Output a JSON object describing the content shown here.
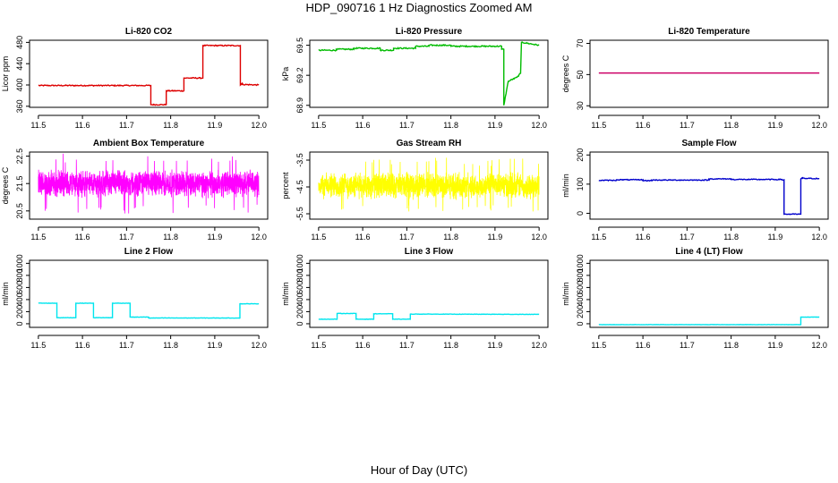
{
  "figure": {
    "title": "HDP_090716  1 Hz Diagnostics Zoomed AM",
    "xlabel": "Hour of Day (UTC)"
  },
  "chart_data": [
    {
      "type": "line",
      "title": "Li-820 CO2",
      "ylabel": "Licor ppm",
      "color": "#dd0000",
      "xlim": [
        11.48,
        12.02
      ],
      "ylim": [
        358,
        484
      ],
      "xticks": [
        11.5,
        11.6,
        11.7,
        11.8,
        11.9,
        12.0
      ],
      "xtick_labels": [
        "11.5",
        "11.6",
        "11.7",
        "11.8",
        "11.9",
        "12.0"
      ],
      "yticks": [
        360,
        400,
        440,
        480
      ],
      "ytick_labels": [
        "360",
        "400",
        "440",
        "480"
      ],
      "style": "step",
      "noise": 1.0,
      "x": [
        11.5,
        11.755,
        11.755,
        11.79,
        11.79,
        11.83,
        11.83,
        11.873,
        11.873,
        11.958,
        11.958,
        11.962,
        11.962,
        12.0
      ],
      "y": [
        399,
        399,
        363,
        363,
        389,
        389,
        413,
        413,
        474,
        474,
        400,
        403,
        401,
        400
      ]
    },
    {
      "type": "line",
      "title": "Li-820 Pressure",
      "ylabel": "kPa",
      "color": "#00bb00",
      "xlim": [
        11.48,
        12.02
      ],
      "ylim": [
        68.88,
        69.55
      ],
      "xticks": [
        11.5,
        11.6,
        11.7,
        11.8,
        11.9,
        12.0
      ],
      "xtick_labels": [
        "11.5",
        "11.6",
        "11.7",
        "11.8",
        "11.9",
        "12.0"
      ],
      "yticks": [
        68.9,
        69.2,
        69.5
      ],
      "ytick_labels": [
        "68.9",
        "69.2",
        "69.5"
      ],
      "style": "step",
      "noise": 0.006,
      "x": [
        11.5,
        11.54,
        11.54,
        11.58,
        11.58,
        11.64,
        11.64,
        11.67,
        11.67,
        11.72,
        11.72,
        11.75,
        11.75,
        11.8,
        11.8,
        11.915,
        11.915,
        11.92,
        11.92,
        11.93,
        11.95,
        11.95,
        11.958,
        11.958,
        11.96,
        12.0
      ],
      "y": [
        69.45,
        69.45,
        69.46,
        69.46,
        69.47,
        69.47,
        69.45,
        69.45,
        69.47,
        69.47,
        69.49,
        69.49,
        69.5,
        69.5,
        69.49,
        69.49,
        69.46,
        69.46,
        68.9,
        69.14,
        69.18,
        69.18,
        69.22,
        69.22,
        69.53,
        69.5
      ]
    },
    {
      "type": "line",
      "title": "Li-820 Temperature",
      "ylabel": "degrees C",
      "color": "#cc0066",
      "xlim": [
        11.48,
        12.02
      ],
      "ylim": [
        29,
        72
      ],
      "xticks": [
        11.5,
        11.6,
        11.7,
        11.8,
        11.9,
        12.0
      ],
      "xtick_labels": [
        "11.5",
        "11.6",
        "11.7",
        "11.8",
        "11.9",
        "12.0"
      ],
      "yticks": [
        30,
        50,
        70
      ],
      "ytick_labels": [
        "30",
        "50",
        "70"
      ],
      "style": "step",
      "noise": 0,
      "x": [
        11.5,
        12.0
      ],
      "y": [
        51,
        51
      ]
    },
    {
      "type": "line",
      "title": "Ambient Box Temperature",
      "ylabel": "degrees C",
      "color": "#ff00ff",
      "xlim": [
        11.48,
        12.02
      ],
      "ylim": [
        20.2,
        22.65
      ],
      "xticks": [
        11.5,
        11.6,
        11.7,
        11.8,
        11.9,
        12.0
      ],
      "xtick_labels": [
        "11.5",
        "11.6",
        "11.7",
        "11.8",
        "11.9",
        "12.0"
      ],
      "yticks": [
        20.5,
        21.5,
        22.5
      ],
      "ytick_labels": [
        "20.5",
        "21.5",
        "22.5"
      ],
      "style": "noise",
      "center": 21.5,
      "spread": 0.55,
      "spike": 1.1,
      "samples": 1800,
      "x": [
        11.5,
        12.0
      ],
      "y": [
        21.5,
        21.5
      ]
    },
    {
      "type": "line",
      "title": "Gas Stream RH",
      "ylabel": "percent",
      "color": "#ffff00",
      "xlim": [
        11.48,
        12.02
      ],
      "ylim": [
        -5.7,
        -3.2
      ],
      "xticks": [
        11.5,
        11.6,
        11.7,
        11.8,
        11.9,
        12.0
      ],
      "xtick_labels": [
        "11.5",
        "11.6",
        "11.7",
        "11.8",
        "11.9",
        "12.0"
      ],
      "yticks": [
        -5.5,
        -4.5,
        -3.5
      ],
      "ytick_labels": [
        "-5.5",
        "-4.5",
        "-3.5"
      ],
      "style": "noise",
      "center": -4.45,
      "spread": 0.55,
      "spike": 1.05,
      "samples": 1800,
      "x": [
        11.5,
        12.0
      ],
      "y": [
        -4.45,
        -4.45
      ]
    },
    {
      "type": "line",
      "title": "Sample Flow",
      "ylabel": "ml/min",
      "color": "#0000cc",
      "xlim": [
        11.48,
        12.02
      ],
      "ylim": [
        -20,
        210
      ],
      "xticks": [
        11.5,
        11.6,
        11.7,
        11.8,
        11.9,
        12.0
      ],
      "xtick_labels": [
        "11.5",
        "11.6",
        "11.7",
        "11.8",
        "11.9",
        "12.0"
      ],
      "yticks": [
        0,
        100,
        200
      ],
      "ytick_labels": [
        "0",
        "100",
        "200"
      ],
      "style": "step",
      "noise": 1.5,
      "x": [
        11.5,
        11.54,
        11.54,
        11.6,
        11.6,
        11.62,
        11.62,
        11.75,
        11.75,
        11.8,
        11.8,
        11.915,
        11.915,
        11.92,
        11.92,
        11.958,
        11.958,
        11.962,
        11.962,
        12.0
      ],
      "y": [
        113,
        113,
        115,
        115,
        112,
        112,
        114,
        114,
        118,
        118,
        116,
        116,
        115,
        115,
        -3,
        -3,
        118,
        122,
        120,
        119
      ]
    },
    {
      "type": "line",
      "title": "Line 2 Flow",
      "ylabel": "ml/min",
      "color": "#00e5ee",
      "xlim": [
        11.48,
        12.02
      ],
      "ylim": [
        -60,
        1050
      ],
      "xticks": [
        11.5,
        11.6,
        11.7,
        11.8,
        11.9,
        12.0
      ],
      "xtick_labels": [
        "11.5",
        "11.6",
        "11.7",
        "11.8",
        "11.9",
        "12.0"
      ],
      "yticks": [
        0,
        200,
        400,
        600,
        800,
        1000
      ],
      "ytick_labels": [
        "0",
        "200",
        "400",
        "600",
        "800",
        "1000"
      ],
      "style": "step",
      "noise": 3,
      "x": [
        11.5,
        11.542,
        11.542,
        11.585,
        11.585,
        11.625,
        11.625,
        11.668,
        11.668,
        11.708,
        11.708,
        11.75,
        11.75,
        11.957,
        11.957,
        12.0
      ],
      "y": [
        340,
        340,
        100,
        100,
        340,
        340,
        100,
        100,
        340,
        340,
        110,
        110,
        95,
        95,
        330,
        330
      ]
    },
    {
      "type": "line",
      "title": "Line 3 Flow",
      "ylabel": "ml/min",
      "color": "#00e5ee",
      "xlim": [
        11.48,
        12.02
      ],
      "ylim": [
        -60,
        1050
      ],
      "xticks": [
        11.5,
        11.6,
        11.7,
        11.8,
        11.9,
        12.0
      ],
      "xtick_labels": [
        "11.5",
        "11.6",
        "11.7",
        "11.8",
        "11.9",
        "12.0"
      ],
      "yticks": [
        0,
        200,
        400,
        600,
        800,
        1000
      ],
      "ytick_labels": [
        "0",
        "200",
        "400",
        "600",
        "800",
        "1000"
      ],
      "style": "step",
      "noise": 3,
      "x": [
        11.5,
        11.542,
        11.542,
        11.585,
        11.585,
        11.625,
        11.625,
        11.668,
        11.668,
        11.708,
        11.708,
        12.0
      ],
      "y": [
        75,
        75,
        170,
        170,
        75,
        75,
        165,
        165,
        75,
        75,
        160,
        155
      ]
    },
    {
      "type": "line",
      "title": "Line 4 (LT) Flow",
      "ylabel": "ml/min",
      "color": "#00e5ee",
      "xlim": [
        11.48,
        12.02
      ],
      "ylim": [
        -60,
        1050
      ],
      "xticks": [
        11.5,
        11.6,
        11.7,
        11.8,
        11.9,
        12.0
      ],
      "xtick_labels": [
        "11.5",
        "11.6",
        "11.7",
        "11.8",
        "11.9",
        "12.0"
      ],
      "yticks": [
        0,
        200,
        400,
        600,
        800,
        1000
      ],
      "ytick_labels": [
        "0",
        "200",
        "400",
        "600",
        "800",
        "1000"
      ],
      "style": "step",
      "noise": 2,
      "x": [
        11.5,
        11.958,
        11.958,
        12.0
      ],
      "y": [
        -15,
        -15,
        110,
        110
      ]
    }
  ]
}
